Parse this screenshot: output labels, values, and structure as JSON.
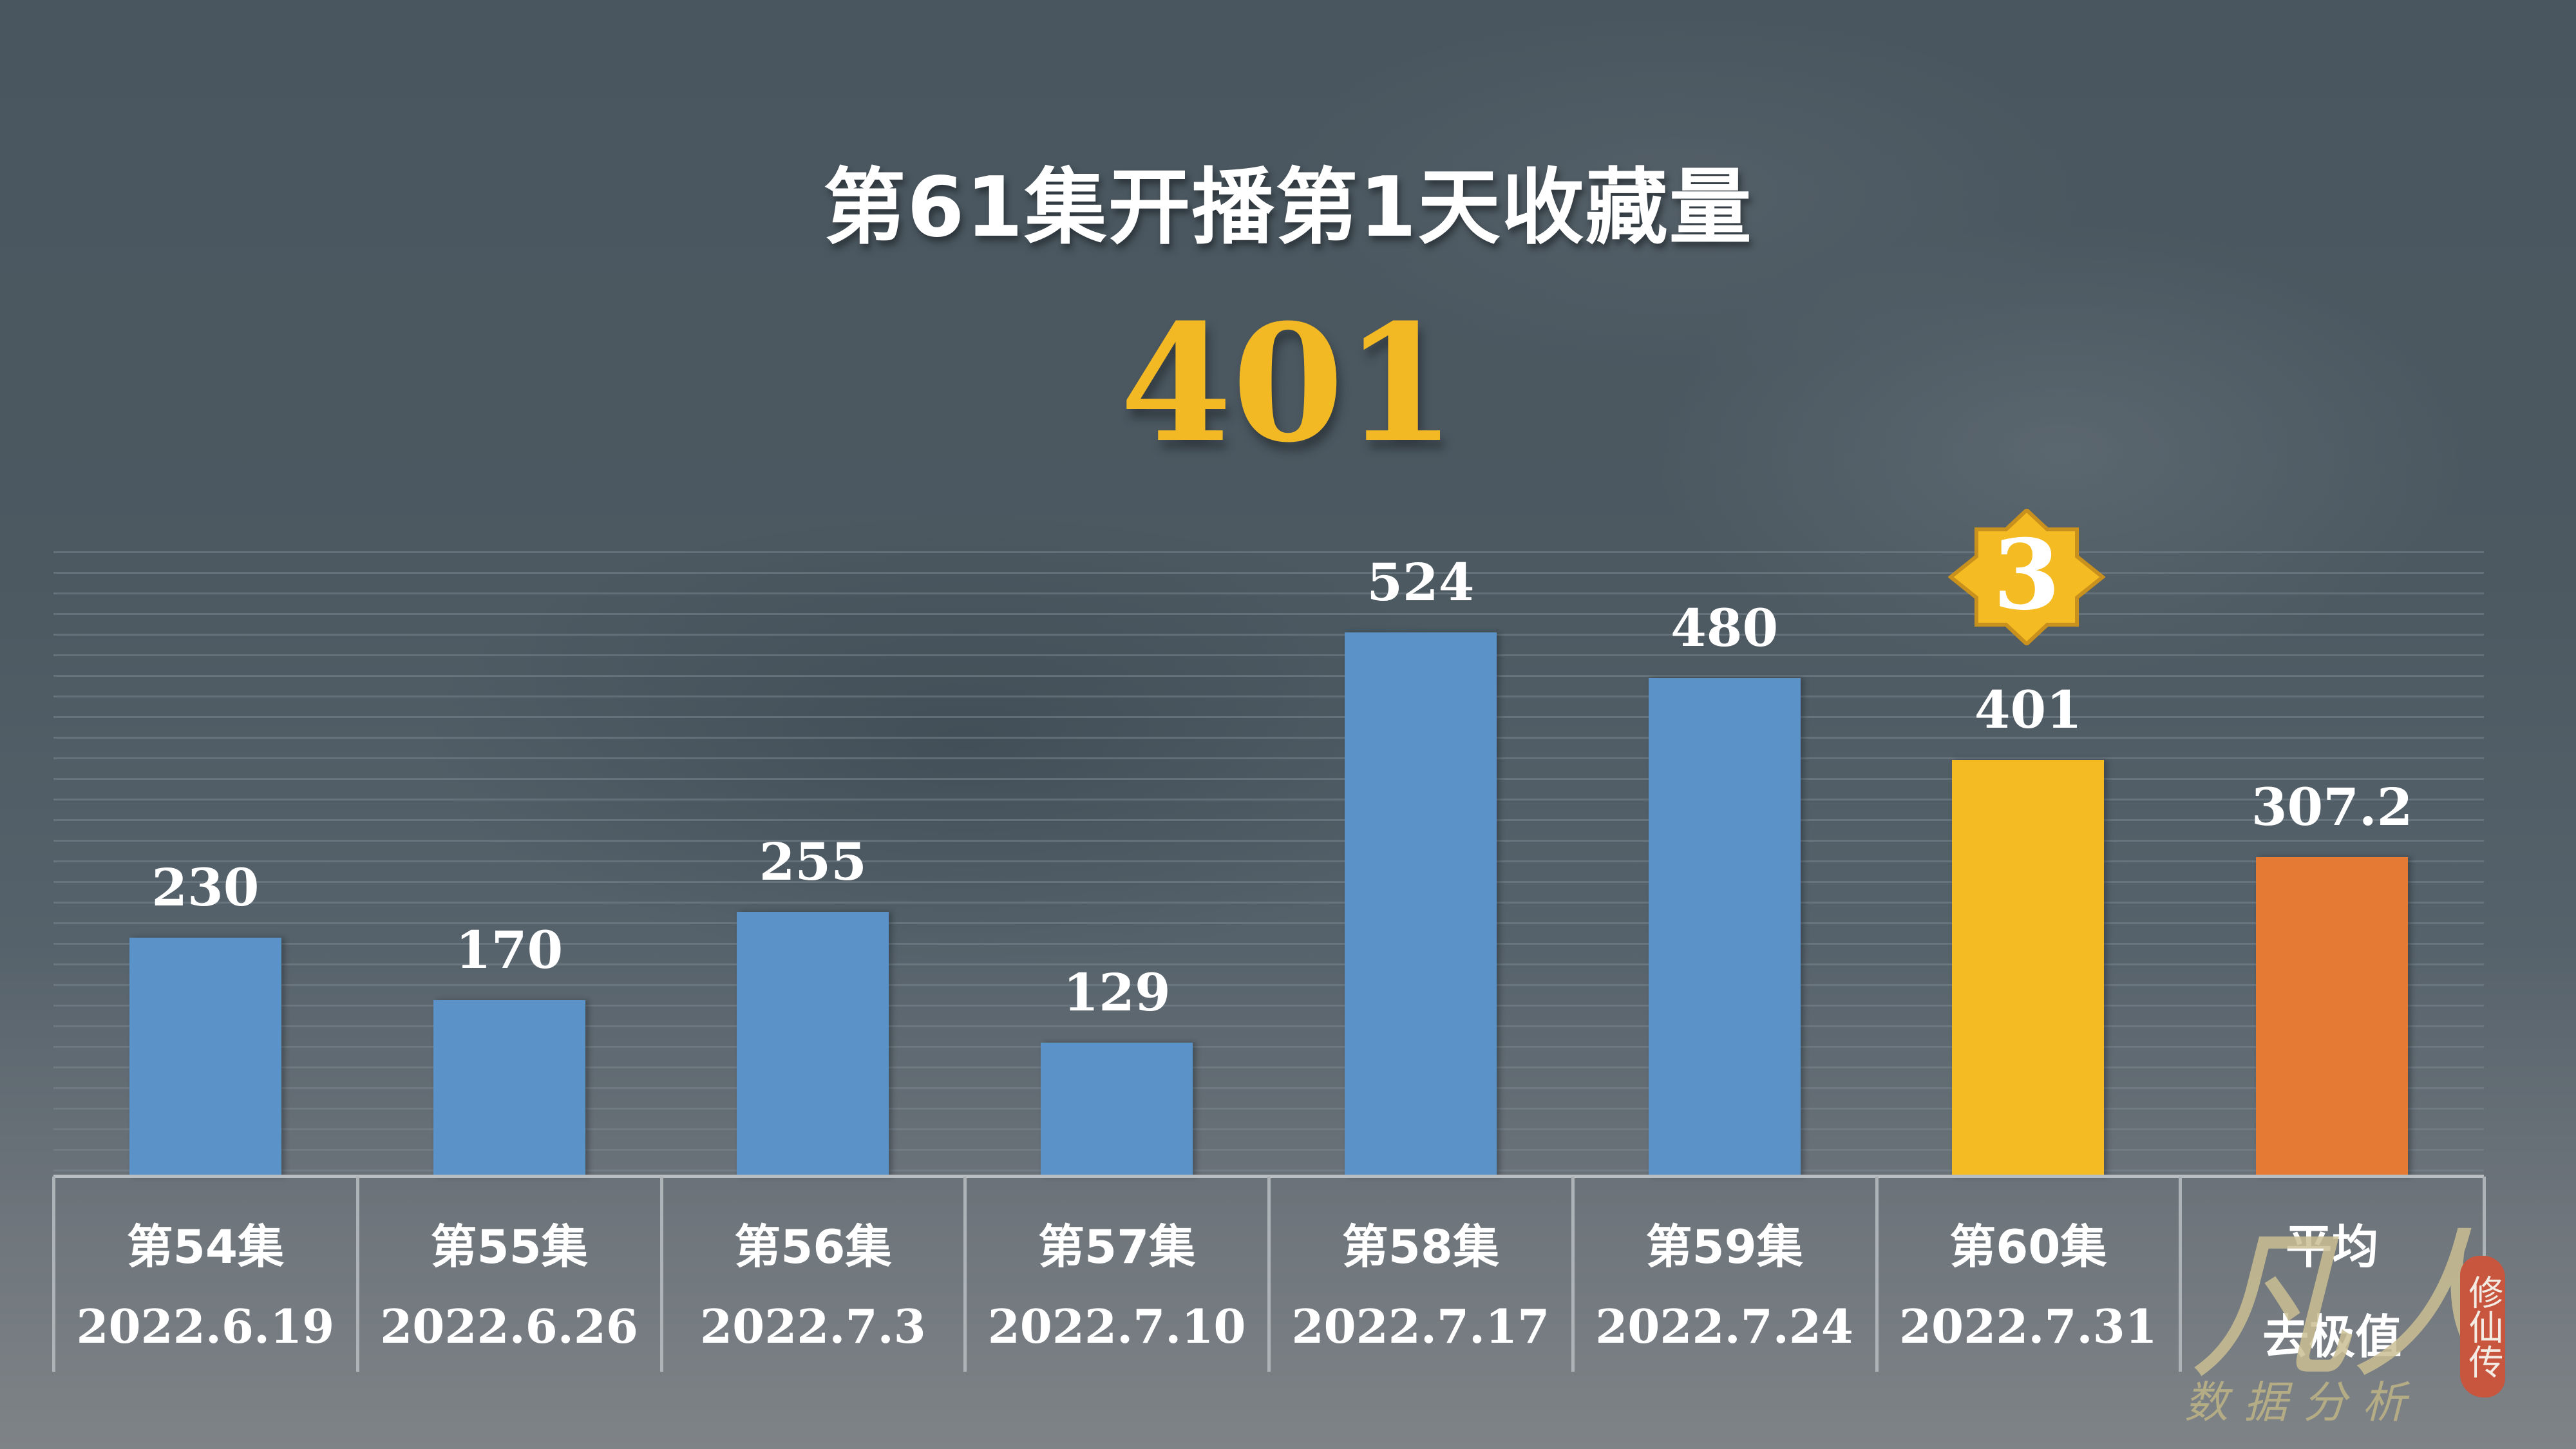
{
  "title": "第61集开播第1天收藏量",
  "headline_value": "401",
  "rank_badge": {
    "value": "3",
    "icon": "eight-point-star-icon",
    "color": "#f5bb22"
  },
  "colors": {
    "normal_bar": "#5b93c9",
    "highlight_bar": "#f5bb22",
    "average_bar": "#e57a35",
    "headline": "#f3b924"
  },
  "chart_data": {
    "type": "bar",
    "title": "第61集开播第1天收藏量",
    "headline": 401,
    "categories": [
      "第54集",
      "第55集",
      "第56集",
      "第57集",
      "第58集",
      "第59集",
      "第60集",
      "平均"
    ],
    "dates": [
      "2022.6.19",
      "2022.6.26",
      "2022.7.3",
      "2022.7.10",
      "2022.7.17",
      "2022.7.24",
      "2022.7.31",
      "去极值"
    ],
    "values": [
      230,
      170,
      255,
      129,
      524,
      480,
      401,
      307.2
    ],
    "value_labels": [
      "230",
      "170",
      "255",
      "129",
      "524",
      "480",
      "401",
      "307.2"
    ],
    "bar_colors": [
      "#5b93c9",
      "#5b93c9",
      "#5b93c9",
      "#5b93c9",
      "#5b93c9",
      "#5b93c9",
      "#f5bb22",
      "#e57a35"
    ],
    "annotations": [
      {
        "category": "第60集",
        "text": "3",
        "shape": "eight-point-star"
      }
    ],
    "xlabel": "",
    "ylabel": "",
    "ylim": [
      0,
      600
    ],
    "grid": true,
    "legend": "none"
  },
  "watermark": {
    "main": "凡人",
    "sub": "数据分析",
    "seal": "修仙传"
  }
}
